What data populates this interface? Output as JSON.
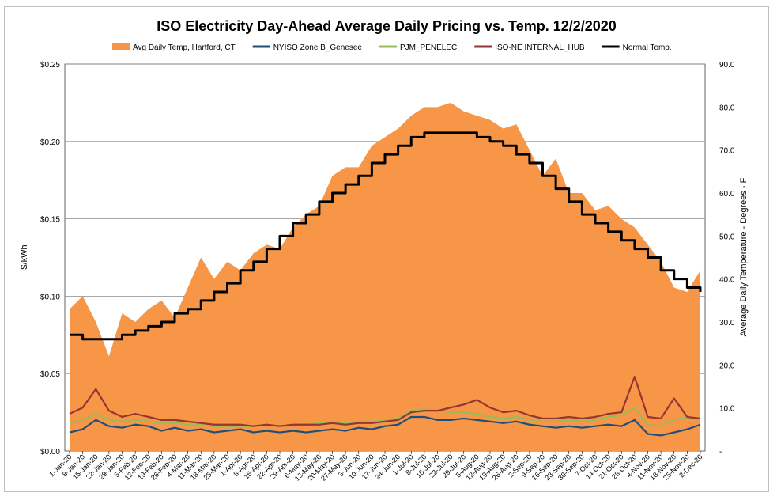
{
  "chart_data": {
    "type": "line",
    "title": "ISO Electricity Day-Ahead Average Daily Pricing vs. Temp. 12/2/2020",
    "ylabel_left": "$/kWh",
    "ylabel_right": "Average Daily Temperature - Degrees - F",
    "ylim_left": [
      0,
      0.25
    ],
    "ylim_right": [
      0,
      90
    ],
    "yticks_left": [
      "$0.00",
      "$0.05",
      "$0.10",
      "$0.15",
      "$0.20",
      "$0.25"
    ],
    "yticks_right": [
      "-",
      "10.0",
      "20.0",
      "30.0",
      "40.0",
      "50.0",
      "60.0",
      "70.0",
      "80.0",
      "90.0"
    ],
    "grid": true,
    "legend_position": "top",
    "x": [
      "1-Jan-20",
      "8-Jan-20",
      "15-Jan-20",
      "22-Jan-20",
      "29-Jan-20",
      "5-Feb-20",
      "12-Feb-20",
      "19-Feb-20",
      "26-Feb-20",
      "4-Mar-20",
      "11-Mar-20",
      "18-Mar-20",
      "25-Mar-20",
      "1-Apr-20",
      "8-Apr-20",
      "15-Apr-20",
      "22-Apr-20",
      "29-Apr-20",
      "6-May-20",
      "13-May-20",
      "20-May-20",
      "27-May-20",
      "3-Jun-20",
      "10-Jun-20",
      "17-Jun-20",
      "24-Jun-20",
      "1-Jul-20",
      "8-Jul-20",
      "15-Jul-20",
      "22-Jul-20",
      "29-Jul-20",
      "5-Aug-20",
      "12-Aug-20",
      "19-Aug-20",
      "26-Aug-20",
      "2-Sep-20",
      "9-Sep-20",
      "16-Sep-20",
      "23-Sep-20",
      "30-Sep-20",
      "7-Oct-20",
      "14-Oct-20",
      "21-Oct-20",
      "28-Oct-20",
      "4-Nov-20",
      "11-Nov-20",
      "18-Nov-20",
      "25-Nov-20",
      "2-Dec-20"
    ],
    "series": [
      {
        "name": "Avg Daily Temp, Hartford, CT",
        "axis": "right",
        "style": "area",
        "color": "#F79646",
        "values": [
          33,
          36,
          30,
          22,
          32,
          30,
          33,
          35,
          31,
          38,
          45,
          40,
          44,
          42,
          46,
          48,
          47,
          52,
          55,
          57,
          64,
          66,
          66,
          71,
          73,
          75,
          78,
          80,
          80,
          81,
          79,
          78,
          77,
          75,
          76,
          70,
          64,
          68,
          60,
          60,
          56,
          57,
          54,
          52,
          48,
          44,
          38,
          37,
          42
        ]
      },
      {
        "name": "NYISO Zone B_Genesee",
        "axis": "left",
        "style": "line",
        "color": "#1F4E79",
        "values": [
          0.012,
          0.014,
          0.02,
          0.016,
          0.015,
          0.017,
          0.016,
          0.013,
          0.015,
          0.013,
          0.014,
          0.012,
          0.013,
          0.014,
          0.012,
          0.013,
          0.012,
          0.013,
          0.012,
          0.013,
          0.014,
          0.013,
          0.015,
          0.014,
          0.016,
          0.017,
          0.022,
          0.022,
          0.02,
          0.02,
          0.021,
          0.02,
          0.019,
          0.018,
          0.019,
          0.017,
          0.016,
          0.015,
          0.016,
          0.015,
          0.016,
          0.017,
          0.016,
          0.02,
          0.011,
          0.01,
          0.012,
          0.014,
          0.017
        ]
      },
      {
        "name": "PJM_PENELEC",
        "axis": "left",
        "style": "line",
        "color": "#9BBB59",
        "values": [
          0.018,
          0.02,
          0.024,
          0.02,
          0.019,
          0.02,
          0.019,
          0.018,
          0.018,
          0.017,
          0.017,
          0.016,
          0.016,
          0.016,
          0.016,
          0.017,
          0.016,
          0.017,
          0.017,
          0.018,
          0.019,
          0.018,
          0.019,
          0.019,
          0.02,
          0.021,
          0.026,
          0.027,
          0.026,
          0.025,
          0.025,
          0.024,
          0.022,
          0.021,
          0.022,
          0.02,
          0.019,
          0.019,
          0.02,
          0.019,
          0.02,
          0.022,
          0.023,
          0.028,
          0.017,
          0.016,
          0.02,
          0.022,
          0.02
        ]
      },
      {
        "name": "ISO-NE INTERNAL_HUB",
        "axis": "left",
        "style": "line",
        "color": "#943634",
        "values": [
          0.024,
          0.028,
          0.04,
          0.026,
          0.022,
          0.024,
          0.022,
          0.02,
          0.02,
          0.019,
          0.018,
          0.017,
          0.017,
          0.017,
          0.016,
          0.017,
          0.016,
          0.017,
          0.017,
          0.017,
          0.018,
          0.017,
          0.018,
          0.018,
          0.019,
          0.02,
          0.025,
          0.026,
          0.026,
          0.028,
          0.03,
          0.033,
          0.028,
          0.025,
          0.026,
          0.023,
          0.021,
          0.021,
          0.022,
          0.021,
          0.022,
          0.024,
          0.025,
          0.048,
          0.022,
          0.021,
          0.034,
          0.022,
          0.021
        ]
      },
      {
        "name": "Normal Temp.",
        "axis": "right",
        "style": "line",
        "color": "#000000",
        "values": [
          27,
          26,
          26,
          26,
          27,
          28,
          29,
          30,
          32,
          33,
          35,
          37,
          39,
          42,
          44,
          47,
          50,
          53,
          55,
          58,
          60,
          62,
          64,
          67,
          69,
          71,
          73,
          74,
          74,
          74,
          74,
          73,
          72,
          71,
          69,
          67,
          64,
          61,
          58,
          55,
          53,
          51,
          49,
          47,
          45,
          42,
          40,
          38,
          37
        ]
      }
    ]
  }
}
